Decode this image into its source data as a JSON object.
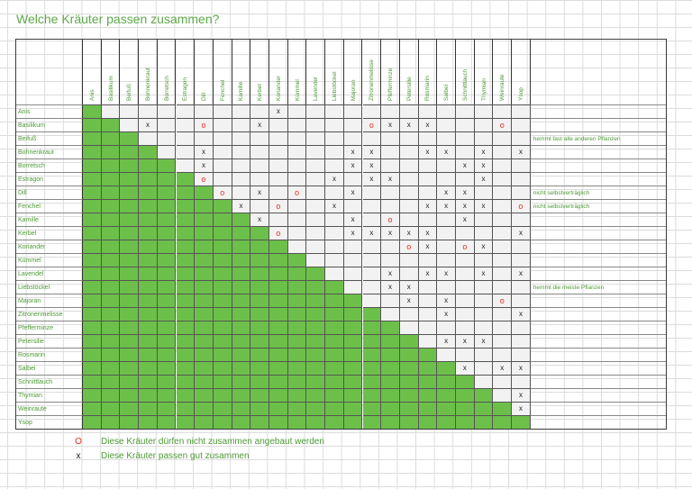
{
  "title": "Welche Kräuter passen zusammen?",
  "herbs": [
    "Anis",
    "Basilikum",
    "Beifuß",
    "Bohnenkraut",
    "Borretsch",
    "Estragon",
    "Dill",
    "Fenchel",
    "Kamille",
    "Kerbel",
    "Koriander",
    "Kümmel",
    "Lavendel",
    "Liebstöckel",
    "Majoran",
    "Zitronenmelisse",
    "Pfefferminze",
    "Petersilie",
    "Rosmarin",
    "Salbei",
    "Schnittlauch",
    "Thymian",
    "Weinraute",
    "Ysop"
  ],
  "column_headers": [
    "Anis",
    "Basilikum",
    "Beifuß",
    "Bohnenkraut",
    "Borretsch",
    "Estragon",
    "Dill",
    "Fenchel",
    "Kamille",
    "Kerbel",
    "Koriander",
    "Kümmel",
    "Lavendel",
    "Liebstöckel",
    "Majoran",
    "Zitronenmelisse",
    "Pfefferminze",
    "Petersilie",
    "Rosmarin",
    "Salbei",
    "Schnittlauch",
    "Thymian",
    "Weinraute",
    "Ysop"
  ],
  "marks": {
    "0": {
      "10": "x"
    },
    "1": {
      "3": "x",
      "6": "o",
      "9": "x",
      "15": "o",
      "16": "x",
      "17": "x",
      "18": "x",
      "22": "o"
    },
    "3": {
      "6": "x",
      "14": "x",
      "15": "x",
      "18": "x",
      "19": "x",
      "21": "x",
      "23": "x"
    },
    "4": {
      "6": "x",
      "14": "x",
      "15": "x",
      "20": "x",
      "21": "x"
    },
    "5": {
      "6": "o",
      "13": "x",
      "15": "x",
      "16": "x",
      "21": "x"
    },
    "6": {
      "7": "o",
      "9": "x",
      "11": "o",
      "14": "x",
      "19": "x",
      "20": "x"
    },
    "7": {
      "8": "x",
      "10": "o",
      "13": "x",
      "18": "x",
      "19": "x",
      "20": "x",
      "21": "x",
      "23": "o"
    },
    "8": {
      "9": "x",
      "14": "x",
      "16": "o",
      "20": "x"
    },
    "9": {
      "10": "o",
      "14": "x",
      "15": "x",
      "16": "x",
      "17": "x",
      "18": "x",
      "23": "x"
    },
    "10": {
      "17": "o",
      "18": "x",
      "20": "o",
      "21": "x"
    },
    "12": {
      "16": "x",
      "18": "x",
      "19": "x",
      "21": "x",
      "23": "x"
    },
    "13": {
      "16": "x",
      "17": "x"
    },
    "14": {
      "17": "x",
      "19": "x",
      "22": "o"
    },
    "15": {
      "19": "x",
      "23": "x"
    },
    "17": {
      "19": "x",
      "20": "x",
      "21": "x"
    },
    "19": {
      "20": "x",
      "22": "x",
      "23": "x"
    },
    "21": {
      "23": "x"
    },
    "22": {
      "23": "x"
    }
  },
  "notes": {
    "2": "hemmt fast alle anderen Pflanzen",
    "6": "nicht selbstverträglich",
    "7": "nicht selbstverträglich",
    "13": "hemmt die meiste Pflanzen"
  },
  "legend": [
    {
      "symbol": "O",
      "text": "Diese Kräuter dürfen nicht zusammen angebaut werden"
    },
    {
      "symbol": "x",
      "text": "Diese Kräuter passen gut zusammen"
    }
  ],
  "colors": {
    "compatible_fill": "#6cc04a",
    "bad_mark": "#e8302a",
    "text_green": "#4f9a38"
  }
}
